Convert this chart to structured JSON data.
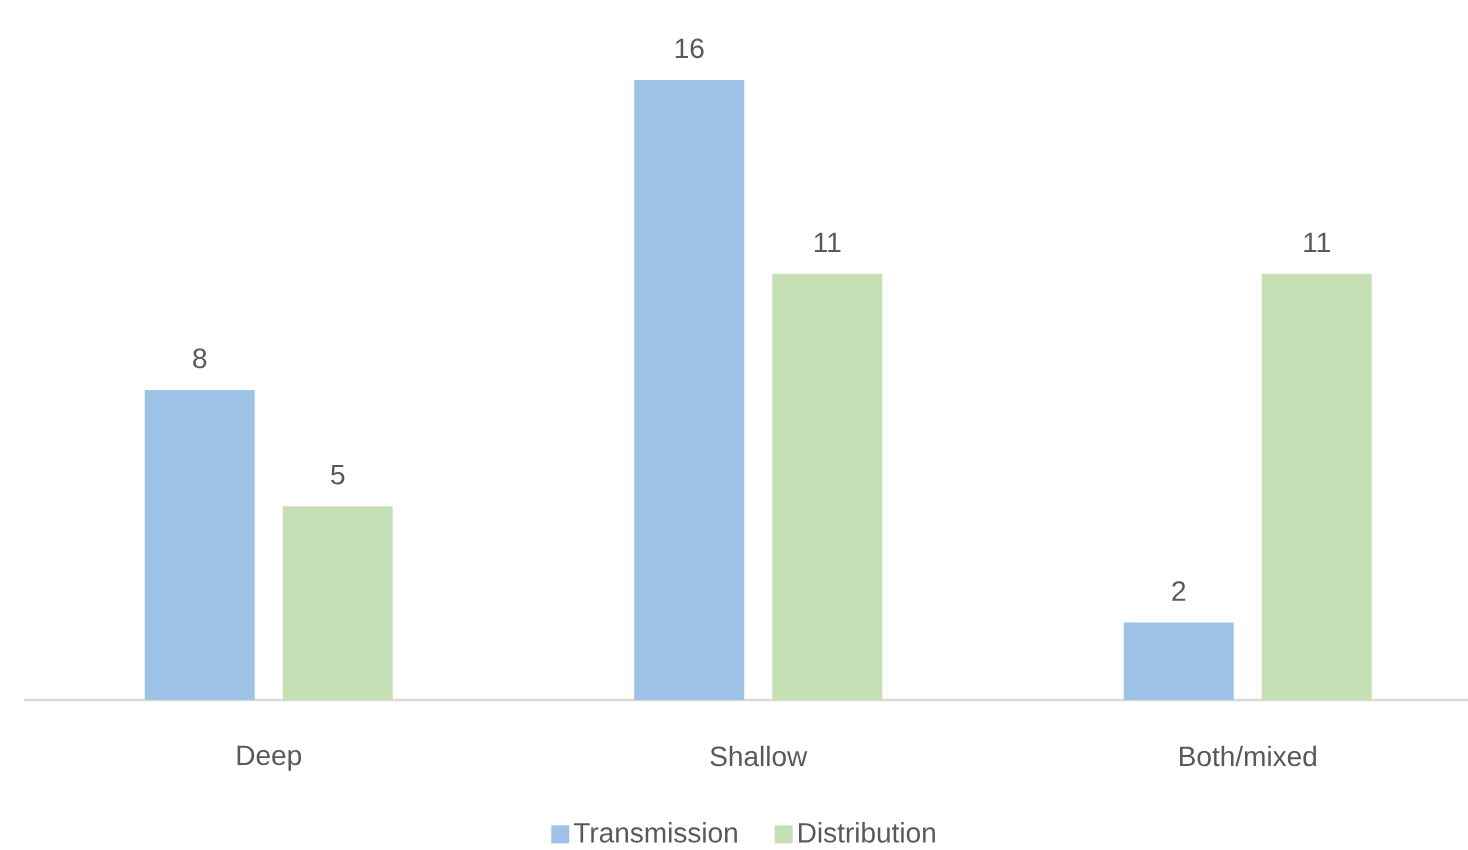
{
  "chart_data": {
    "type": "bar",
    "categories": [
      "Deep",
      "Shallow",
      "Both/mixed"
    ],
    "series": [
      {
        "name": "Transmission",
        "color": "#9dc3e6",
        "values": [
          8,
          16,
          2
        ]
      },
      {
        "name": "Distribution",
        "color": "#c5e0b4",
        "values": [
          5,
          11,
          11
        ]
      }
    ],
    "data_labels": true,
    "legend": "bottom"
  }
}
